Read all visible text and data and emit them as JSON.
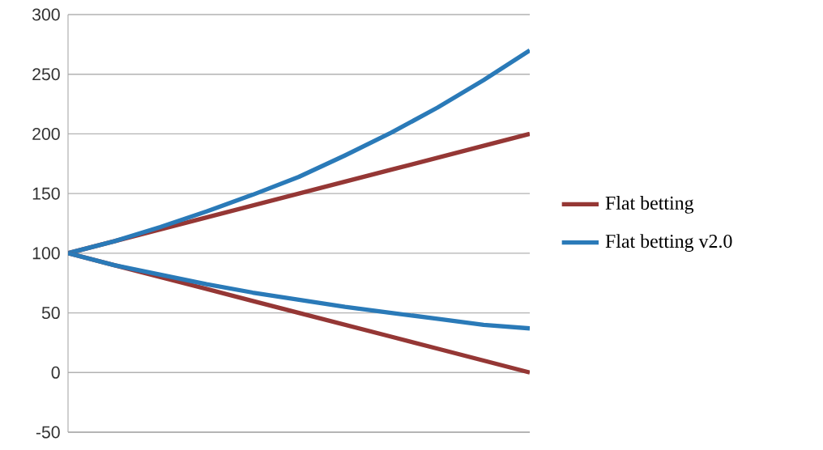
{
  "chart_data": {
    "type": "line",
    "categories": [
      null,
      null,
      null,
      null,
      null,
      null,
      null,
      null,
      null,
      null,
      null
    ],
    "series": [
      {
        "name": "Flat betting",
        "color": "#953735",
        "values": [
          100,
          110,
          120,
          130,
          140,
          150,
          160,
          170,
          180,
          190,
          200
        ]
      },
      {
        "name": "Flat betting v2.0",
        "color": "#2a7ab8",
        "values": [
          100,
          110,
          122,
          135,
          149,
          164,
          182,
          201,
          222,
          245,
          270
        ]
      },
      {
        "color": "#953735",
        "values": [
          100,
          90,
          80,
          70,
          60,
          50,
          40,
          30,
          20,
          10,
          0
        ]
      },
      {
        "color": "#2a7ab8",
        "values": [
          100,
          90,
          82,
          74,
          67,
          61,
          55,
          50,
          45,
          40,
          37
        ]
      }
    ],
    "ylim": [
      -50,
      300
    ],
    "yticks": [
      -50,
      0,
      50,
      100,
      150,
      200,
      250,
      300
    ],
    "grid": "y",
    "legend": "right",
    "marker": "none",
    "line_style": "solid"
  }
}
